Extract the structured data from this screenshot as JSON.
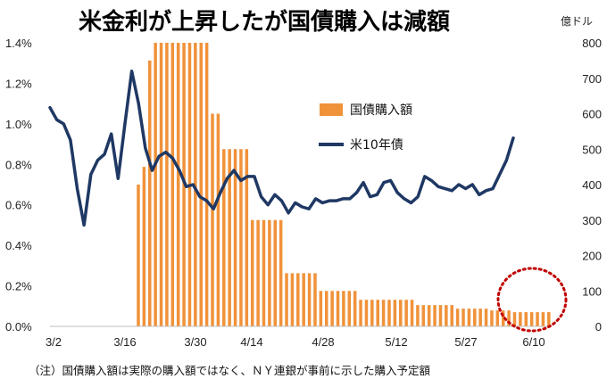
{
  "chart_data": {
    "type": "bar+line",
    "title": "米金利が上昇したが国債購入は減額",
    "note": "（注）国債購入額は実際の購入額ではなく、ＮＹ連銀が事前に示した購入予定額",
    "y_left": {
      "ylim": [
        0,
        1.4
      ],
      "ticks": [
        "0.0%",
        "0.2%",
        "0.4%",
        "0.6%",
        "0.8%",
        "1.0%",
        "1.2%",
        "1.4%"
      ]
    },
    "y_right": {
      "unit": "億ドル",
      "ylim": [
        0,
        800
      ],
      "ticks": [
        "0",
        "100",
        "200",
        "300",
        "400",
        "500",
        "600",
        "700",
        "800"
      ]
    },
    "x_ticks": [
      "3/2",
      "3/16",
      "3/30",
      "4/14",
      "4/28",
      "5/12",
      "5/27",
      "6/10"
    ],
    "legend": [
      {
        "name": "国債購入額",
        "color": "#f0923a"
      },
      {
        "name": "米10年債",
        "color": "#1f3864"
      }
    ],
    "series": [
      {
        "name": "国債購入額",
        "kind": "bar",
        "axis": "right",
        "color": "#f0923a",
        "values": [
          0,
          0,
          0,
          0,
          0,
          0,
          0,
          0,
          0,
          0,
          0,
          0,
          0,
          0,
          0,
          400,
          450,
          750,
          800,
          800,
          800,
          800,
          800,
          800,
          800,
          800,
          800,
          800,
          600,
          600,
          500,
          500,
          500,
          500,
          500,
          300,
          300,
          300,
          300,
          300,
          300,
          150,
          150,
          150,
          150,
          150,
          150,
          100,
          100,
          100,
          100,
          100,
          100,
          100,
          75,
          75,
          75,
          75,
          75,
          75,
          75,
          75,
          75,
          75,
          60,
          60,
          60,
          60,
          60,
          60,
          60,
          50,
          50,
          50,
          50,
          50,
          50,
          45,
          45,
          45,
          45,
          40,
          40,
          40,
          40,
          40,
          40,
          40
        ]
      },
      {
        "name": "米10年債",
        "kind": "line",
        "axis": "left",
        "color": "#1f3864",
        "values": [
          1.08,
          1.02,
          1.0,
          0.92,
          0.68,
          0.5,
          0.75,
          0.82,
          0.85,
          0.95,
          0.73,
          1.0,
          1.26,
          1.1,
          0.88,
          0.77,
          0.84,
          0.86,
          0.83,
          0.77,
          0.69,
          0.7,
          0.64,
          0.62,
          0.58,
          0.66,
          0.73,
          0.77,
          0.72,
          0.74,
          0.74,
          0.64,
          0.6,
          0.65,
          0.62,
          0.56,
          0.61,
          0.59,
          0.58,
          0.63,
          0.61,
          0.62,
          0.62,
          0.63,
          0.63,
          0.66,
          0.71,
          0.64,
          0.65,
          0.71,
          0.72,
          0.66,
          0.63,
          0.61,
          0.64,
          0.74,
          0.72,
          0.69,
          0.68,
          0.67,
          0.7,
          0.68,
          0.7,
          0.65,
          0.67,
          0.68,
          0.75,
          0.82,
          0.93
        ]
      }
    ],
    "annotation": "dotted red circle around the last bars (6/3–6/10)",
    "grid": false
  },
  "colors": {
    "bar": "#f0923a",
    "line": "#1f3864",
    "circle": "#c00000",
    "axis": "#bfbfbf"
  }
}
